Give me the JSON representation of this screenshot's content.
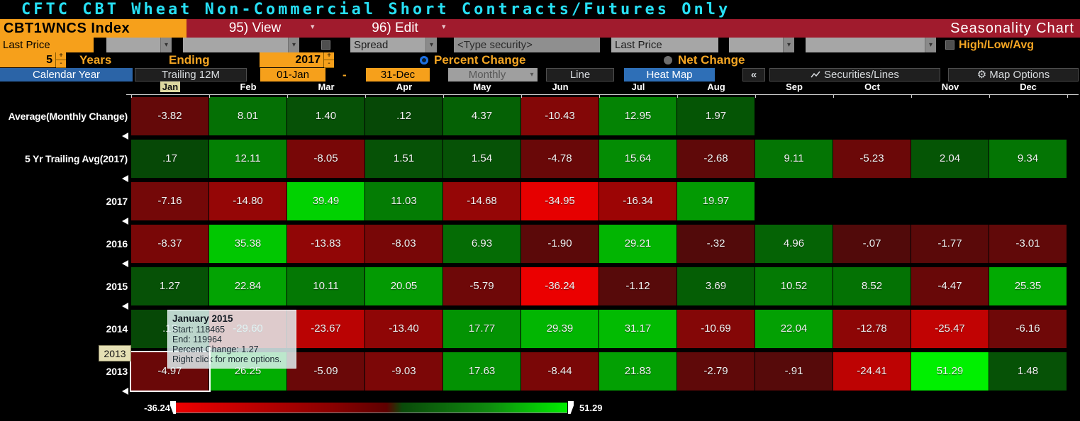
{
  "title": "CFTC CBT Wheat Non-Commercial Short Contracts/Futures Only",
  "menu_bar": {
    "security": "CBT1WNCS Index",
    "view_button": "95) View",
    "edit_button": "96) Edit",
    "screen_title": "Seasonality Chart"
  },
  "fields_row": {
    "field_type": "Last Price",
    "spread": "Spread",
    "type_security": "<Type security>",
    "compare_field": "Last Price",
    "high_low_avg": "High/Low/Avg"
  },
  "period_row": {
    "years_value": "5",
    "years_label": "Years",
    "ending_label": "Ending",
    "ending_year": "2017",
    "percent_change": "Percent Change",
    "net_change": "Net Change",
    "selected_mode": "Percent Change"
  },
  "toolbar": {
    "calendar_year_tab": "Calendar Year",
    "trailing_tab": "Trailing 12M",
    "date_from": "01-Jan",
    "date_separator": "-",
    "date_to": "31-Dec",
    "frequency": "Monthly",
    "line_tab": "Line",
    "heat_map_tab": "Heat Map",
    "collapse_button": "«",
    "securities_lines_button": "Securities/Lines",
    "map_options_button": "Map Options",
    "active_period": "Calendar Year",
    "active_view": "Heat Map"
  },
  "chart_data": {
    "type": "heatmap",
    "columns": [
      "Jan",
      "Feb",
      "Mar",
      "Apr",
      "May",
      "Jun",
      "Jul",
      "Aug",
      "Sep",
      "Oct",
      "Nov",
      "Dec"
    ],
    "highlighted_column": "Jan",
    "rows": [
      {
        "label": "Average(Monthly Change)",
        "values": [
          "-3.82",
          "8.01",
          "1.40",
          ".12",
          "4.37",
          "-10.43",
          "12.95",
          "1.97",
          "",
          "",
          "",
          ""
        ]
      },
      {
        "label": "5 Yr Trailing Avg(2017)",
        "values": [
          ".17",
          "12.11",
          "-8.05",
          "1.51",
          "1.54",
          "-4.78",
          "15.64",
          "-2.68",
          "9.11",
          "-5.23",
          "2.04",
          "9.34"
        ]
      },
      {
        "label": "2017",
        "values": [
          "-7.16",
          "-14.80",
          "39.49",
          "11.03",
          "-14.68",
          "-34.95",
          "-16.34",
          "19.97",
          "",
          "",
          "",
          ""
        ]
      },
      {
        "label": "2016",
        "values": [
          "-8.37",
          "35.38",
          "-13.83",
          "-8.03",
          "6.93",
          "-1.90",
          "29.21",
          "-.32",
          "4.96",
          "-.07",
          "-1.77",
          "-3.01"
        ]
      },
      {
        "label": "2015",
        "values": [
          "1.27",
          "22.84",
          "10.11",
          "20.05",
          "-5.79",
          "-36.24",
          "-1.12",
          "3.69",
          "10.52",
          "8.52",
          "-4.47",
          "25.35"
        ]
      },
      {
        "label": "2014",
        "values": [
          ".13",
          "-29.60",
          "-23.67",
          "-13.40",
          "17.77",
          "29.39",
          "31.17",
          "-10.69",
          "22.04",
          "-12.78",
          "-25.47",
          "-6.16"
        ]
      },
      {
        "label": "2013",
        "values": [
          "-4.97",
          "26.25",
          "-5.09",
          "-9.03",
          "17.63",
          "-8.44",
          "21.83",
          "-2.79",
          "-.91",
          "-24.41",
          "51.29",
          "1.48"
        ]
      }
    ],
    "min": -36.24,
    "max": 51.29,
    "selected_cell": {
      "row": "2013",
      "column": "Jan"
    }
  },
  "tooltip": {
    "title": "January 2015",
    "lines": [
      "Start: 118465",
      "End: 119964",
      "Percent Change: 1.27",
      "Right click for more options."
    ]
  },
  "axis_hover_tag": "2013",
  "legend": {
    "min_label": "-36.24",
    "max_label": "51.29"
  },
  "icons": {
    "caret": "▾",
    "gear": "⚙",
    "plus": "+",
    "minus": "-"
  },
  "colors": {
    "titlebar_cyan": "#27dff4",
    "menu_red": "#a01b2d",
    "accent_orange": "#f6a01b",
    "tab_blue": "#2b64a7",
    "heat_pos_low": "#064606",
    "heat_pos_high": "#00f000",
    "heat_neg_low": "#500a0a",
    "heat_neg_high": "#eb0000"
  }
}
